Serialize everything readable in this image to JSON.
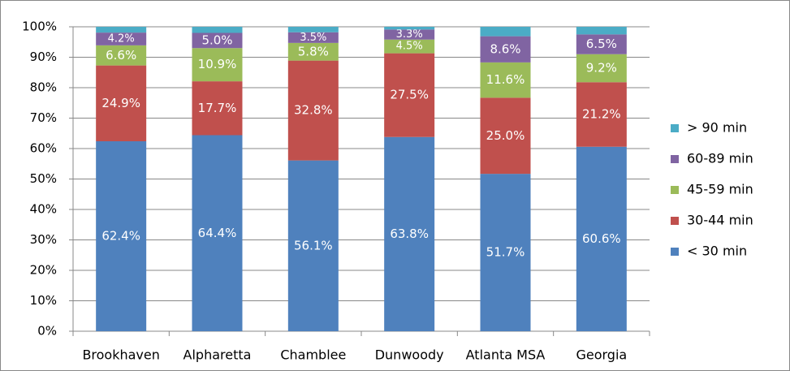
{
  "chart_data": {
    "type": "stacked_bar",
    "categories": [
      "Brookhaven",
      "Alpharetta",
      "Chamblee",
      "Dunwoody",
      "Atlanta MSA",
      "Georgia"
    ],
    "series": [
      {
        "name": "< 30 min",
        "color": "#4f81bd",
        "values": [
          62.4,
          64.4,
          56.1,
          63.8,
          51.7,
          60.6
        ],
        "value_labels": [
          "62.4%",
          "64.4%",
          "56.1%",
          "63.8%",
          "51.7%",
          "60.6%"
        ]
      },
      {
        "name": "30-44 min",
        "color": "#c0504d",
        "values": [
          24.9,
          17.7,
          32.8,
          27.5,
          25.0,
          21.2
        ],
        "value_labels": [
          "24.9%",
          "17.7%",
          "32.8%",
          "27.5%",
          "25.0%",
          "21.2%"
        ]
      },
      {
        "name": "45-59 min",
        "color": "#9bbb59",
        "values": [
          6.6,
          10.9,
          5.8,
          4.5,
          11.6,
          9.2
        ],
        "value_labels": [
          "6.6%",
          "10.9%",
          "5.8%",
          "4.5%",
          "11.6%",
          "9.2%"
        ]
      },
      {
        "name": "60-89 min",
        "color": "#8064a2",
        "values": [
          4.2,
          5.0,
          3.5,
          3.3,
          8.6,
          6.5
        ],
        "value_labels": [
          "4.2%",
          "5.0%",
          "3.5%",
          "3.3%",
          "8.6%",
          "6.5%"
        ]
      },
      {
        "name": "> 90 min",
        "color": "#4bacc6",
        "values": [
          1.9,
          2.0,
          1.8,
          0.9,
          3.1,
          2.5
        ]
      }
    ],
    "ylim": [
      0,
      100
    ],
    "yticks": [
      {
        "value": 0,
        "label": "0%"
      },
      {
        "value": 10,
        "label": "10%"
      },
      {
        "value": 20,
        "label": "20%"
      },
      {
        "value": 30,
        "label": "30%"
      },
      {
        "value": 40,
        "label": "40%"
      },
      {
        "value": 50,
        "label": "50%"
      },
      {
        "value": 60,
        "label": "60%"
      },
      {
        "value": 70,
        "label": "70%"
      },
      {
        "value": 80,
        "label": "80%"
      },
      {
        "value": 90,
        "label": "90%"
      },
      {
        "value": 100,
        "label": "100%"
      }
    ],
    "grid": true,
    "legend": "right"
  }
}
